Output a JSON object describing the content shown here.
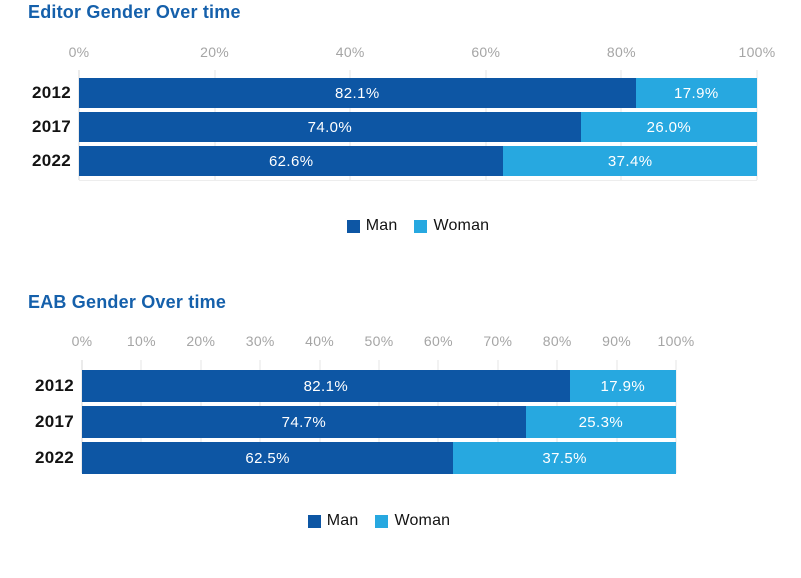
{
  "page_background": "#ffffff",
  "colors": {
    "man": "#0d56a4",
    "woman": "#27a8e0",
    "chart_title": "#1560ab",
    "axis_label": "#a5a5a5",
    "gridline": "#e4e4e4",
    "axis_line": "#d7d7d7",
    "category_label": "#131313",
    "value_label": "#ffffff",
    "legend_label": "#131313"
  },
  "chart_data": [
    {
      "type": "bar",
      "orientation": "horizontal",
      "stacked": true,
      "title": "Editor Gender Over time",
      "categories": [
        "2012",
        "2017",
        "2022"
      ],
      "series": [
        {
          "name": "Man",
          "color_key": "man",
          "values": [
            82.1,
            74.0,
            62.6
          ],
          "labels": [
            "82.1%",
            "74.0%",
            "62.6%"
          ]
        },
        {
          "name": "Woman",
          "color_key": "woman",
          "values": [
            17.9,
            26.0,
            37.4
          ],
          "labels": [
            "17.9%",
            "26.0%",
            "37.4%"
          ]
        }
      ],
      "x_axis": {
        "min": 0,
        "max": 100,
        "tick_step": 20,
        "tick_labels": [
          "0%",
          "20%",
          "40%",
          "60%",
          "80%",
          "100%"
        ]
      },
      "grid": true,
      "legend": {
        "position": "bottom-center",
        "entries": [
          "Man",
          "Woman"
        ]
      }
    },
    {
      "type": "bar",
      "orientation": "horizontal",
      "stacked": true,
      "title": "EAB Gender Over time",
      "categories": [
        "2012",
        "2017",
        "2022"
      ],
      "series": [
        {
          "name": "Man",
          "color_key": "man",
          "values": [
            82.1,
            74.7,
            62.5
          ],
          "labels": [
            "82.1%",
            "74.7%",
            "62.5%"
          ]
        },
        {
          "name": "Woman",
          "color_key": "woman",
          "values": [
            17.9,
            25.3,
            37.5
          ],
          "labels": [
            "17.9%",
            "25.3%",
            "37.5%"
          ]
        }
      ],
      "x_axis": {
        "min": 0,
        "max": 100,
        "tick_step": 10,
        "tick_labels": [
          "0%",
          "10%",
          "20%",
          "30%",
          "40%",
          "50%",
          "60%",
          "70%",
          "80%",
          "90%",
          "100%"
        ]
      },
      "grid": true,
      "legend": {
        "position": "bottom-center",
        "entries": [
          "Man",
          "Woman"
        ]
      }
    }
  ]
}
